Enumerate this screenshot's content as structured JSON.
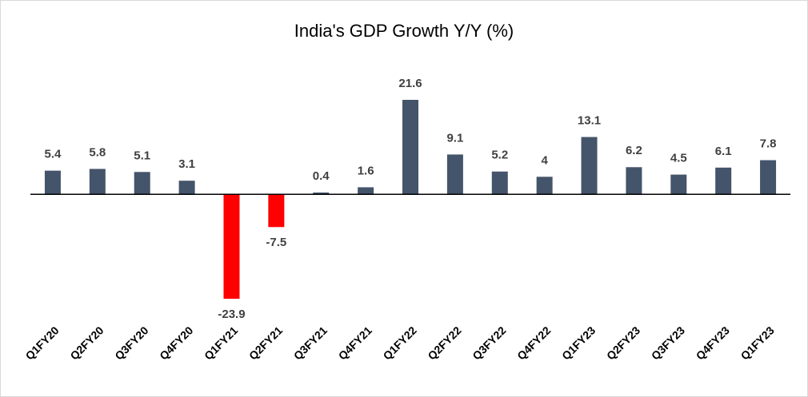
{
  "chart_data": {
    "type": "bar",
    "title": "India's GDP Growth Y/Y (%)",
    "categories": [
      "Q1FY20",
      "Q2FY20",
      "Q3FY20",
      "Q4FY20",
      "Q1FY21",
      "Q2FY21",
      "Q3FY21",
      "Q4FY21",
      "Q1FY22",
      "Q2FY22",
      "Q3FY22",
      "Q4FY22",
      "Q1FY23",
      "Q2FY23",
      "Q3FY23",
      "Q4FY23",
      "Q1FY23"
    ],
    "values": [
      5.4,
      5.8,
      5.1,
      3.1,
      -23.9,
      -7.5,
      0.4,
      1.6,
      21.6,
      9.1,
      5.2,
      4,
      13.1,
      6.2,
      4.5,
      6.1,
      7.8
    ],
    "color": "#44546a",
    "negative_color": "#ff0000"
  }
}
